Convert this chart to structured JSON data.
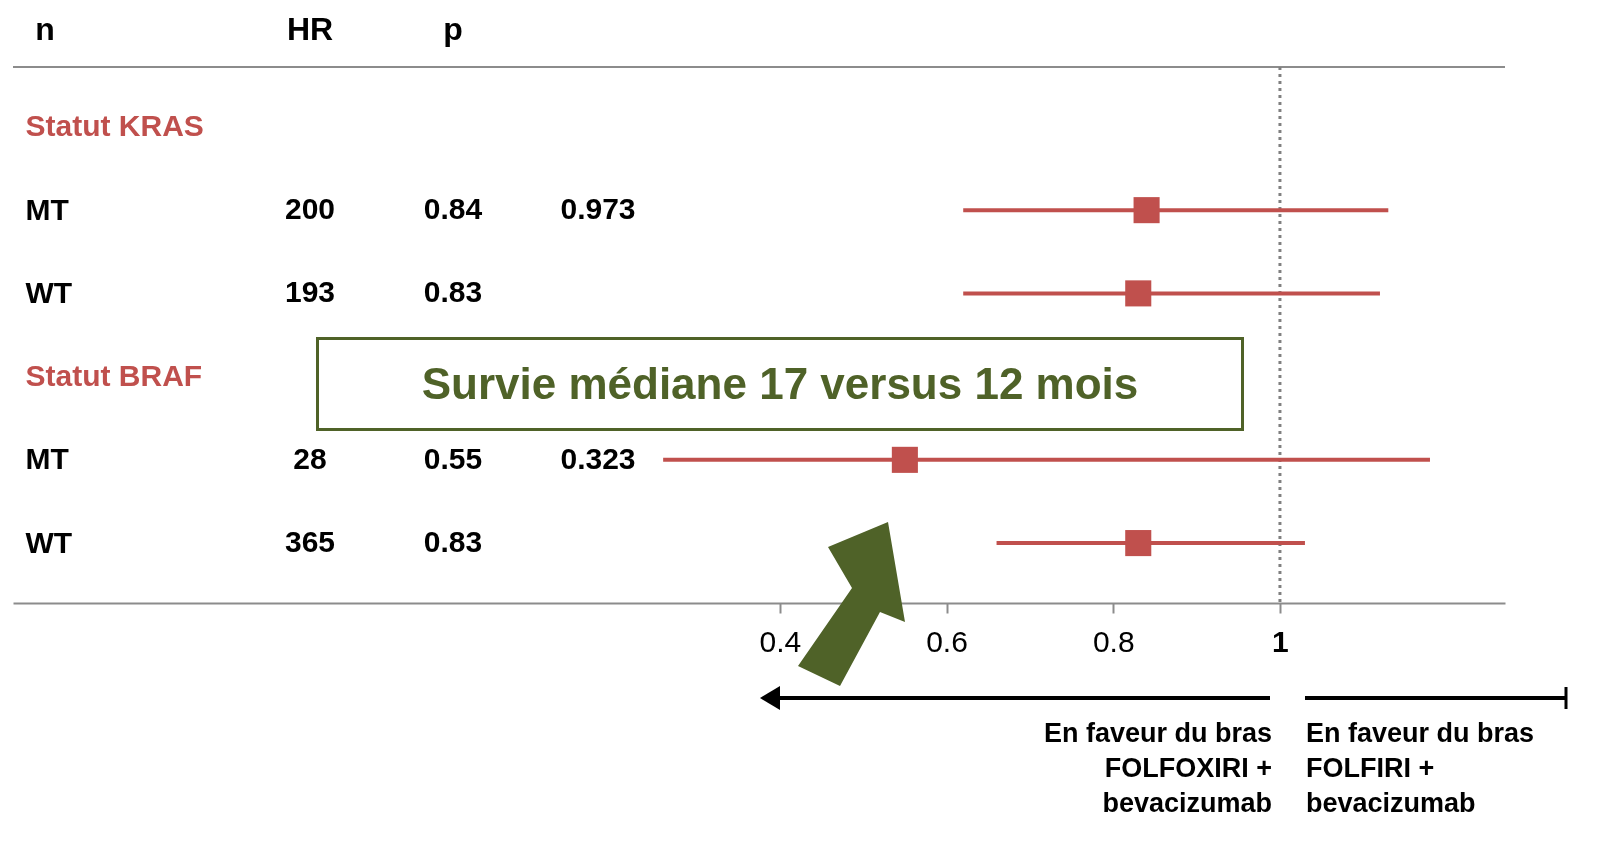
{
  "chart_data": {
    "type": "scatter",
    "orientation": "horizontal",
    "categories": [
      "Statut KRAS",
      "MT",
      "WT",
      "Statut BRAF",
      "MT",
      "WT"
    ],
    "values": [
      null,
      0.84,
      0.83,
      null,
      0.55,
      0.83
    ],
    "errors": [
      null,
      [
        0.62,
        1.13
      ],
      [
        0.62,
        1.12
      ],
      null,
      [
        0.26,
        1.18
      ],
      [
        0.66,
        1.03
      ]
    ],
    "color": "#c0504d",
    "marker": "square",
    "xlim": [
      -0.52,
      1.27
    ],
    "xticks": [
      0.4,
      0.6,
      0.8,
      1
    ],
    "ref_lines": [
      {
        "axis": "x",
        "value": 1,
        "color": "#808080",
        "line_style": "dotted"
      }
    ],
    "annotations": [
      "n",
      "HR",
      "p",
      "200",
      "0.84",
      "0.973",
      "193",
      "0.83",
      "28",
      "0.55",
      "0.323",
      "365",
      "0.83",
      "Survie médiane 17 versus 12 mois",
      "En faveur du bras FOLFOXIRI + bevacizumab",
      "En faveur du bras FOLFIRI + bevacizumab"
    ]
  }
}
